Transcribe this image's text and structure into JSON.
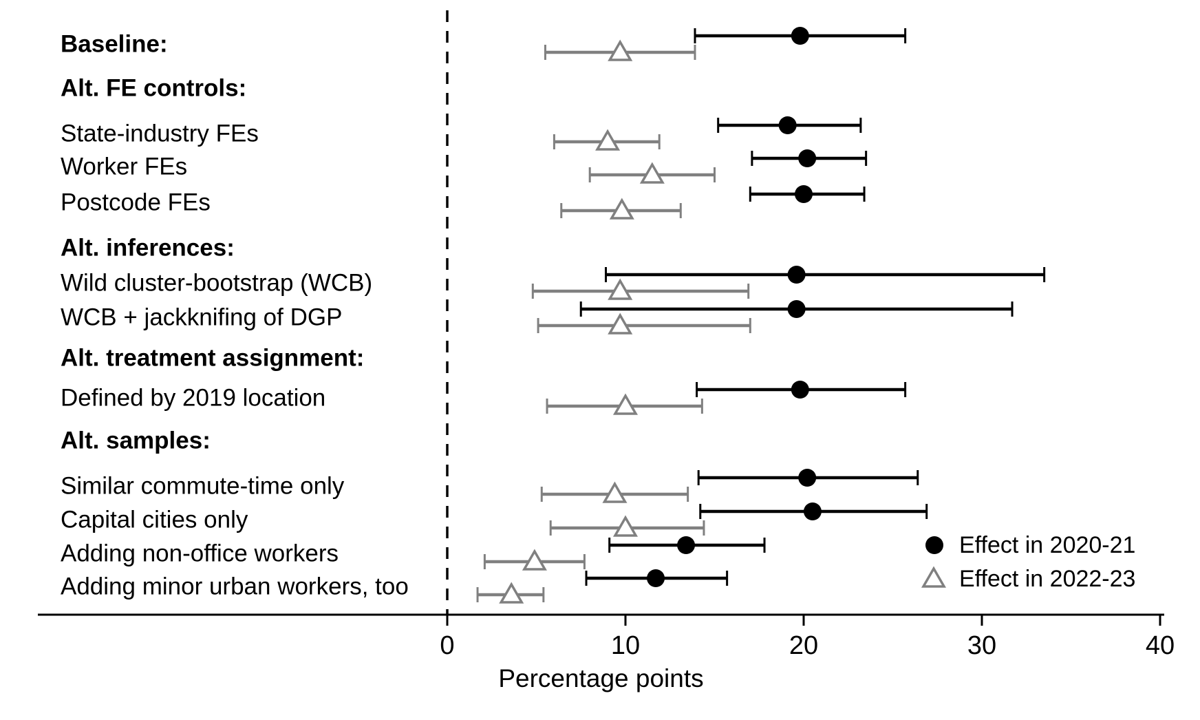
{
  "chart_data": {
    "type": "scatter",
    "subtype": "coefficient-plot-with-confidence-intervals",
    "title": "",
    "xlabel": "Percentage points",
    "xticks": [
      0,
      10,
      20,
      30,
      40
    ],
    "xlim": [
      -23,
      40.3
    ],
    "zero_reference_line": true,
    "grid": false,
    "legend_position": "bottom-right",
    "series_meta": [
      {
        "name": "Effect in 2020-21",
        "marker": "filled-circle",
        "color": "#000000"
      },
      {
        "name": "Effect in 2022-23",
        "marker": "open-triangle",
        "color": "#808080"
      }
    ],
    "rows": [
      {
        "type": "data",
        "label": "Baseline:",
        "bold": true,
        "e2021": {
          "est": 19.8,
          "lo": 13.9,
          "hi": 25.7
        },
        "e2023": {
          "est": 9.7,
          "lo": 5.5,
          "hi": 13.9
        }
      },
      {
        "type": "header",
        "label": "Alt. FE controls:"
      },
      {
        "type": "data",
        "label": "State-industry FEs",
        "e2021": {
          "est": 19.1,
          "lo": 15.2,
          "hi": 23.2
        },
        "e2023": {
          "est": 9.0,
          "lo": 6.0,
          "hi": 11.9
        }
      },
      {
        "type": "data",
        "label": "Worker FEs",
        "e2021": {
          "est": 20.2,
          "lo": 17.1,
          "hi": 23.5
        },
        "e2023": {
          "est": 11.5,
          "lo": 8.0,
          "hi": 15.0
        }
      },
      {
        "type": "data",
        "label": "Postcode FEs",
        "e2021": {
          "est": 20.0,
          "lo": 17.0,
          "hi": 23.4
        },
        "e2023": {
          "est": 9.8,
          "lo": 6.4,
          "hi": 13.1
        }
      },
      {
        "type": "header",
        "label": "Alt. inferences:"
      },
      {
        "type": "data",
        "label": "Wild cluster-bootstrap (WCB)",
        "e2021": {
          "est": 19.6,
          "lo": 8.9,
          "hi": 33.5
        },
        "e2023": {
          "est": 9.7,
          "lo": 4.8,
          "hi": 16.9
        }
      },
      {
        "type": "data",
        "label": "WCB + jackknifing of DGP",
        "e2021": {
          "est": 19.6,
          "lo": 7.5,
          "hi": 31.7
        },
        "e2023": {
          "est": 9.7,
          "lo": 5.1,
          "hi": 17.0
        }
      },
      {
        "type": "header",
        "label": "Alt. treatment assignment:"
      },
      {
        "type": "data",
        "label": "Defined by 2019 location",
        "e2021": {
          "est": 19.8,
          "lo": 14.0,
          "hi": 25.7
        },
        "e2023": {
          "est": 10.0,
          "lo": 5.6,
          "hi": 14.3
        }
      },
      {
        "type": "header",
        "label": "Alt. samples:"
      },
      {
        "type": "data",
        "label": "Similar commute-time only",
        "e2021": {
          "est": 20.2,
          "lo": 14.1,
          "hi": 26.4
        },
        "e2023": {
          "est": 9.4,
          "lo": 5.3,
          "hi": 13.5
        }
      },
      {
        "type": "data",
        "label": "Capital cities only",
        "e2021": {
          "est": 20.5,
          "lo": 14.2,
          "hi": 26.9
        },
        "e2023": {
          "est": 10.0,
          "lo": 5.8,
          "hi": 14.4
        }
      },
      {
        "type": "data",
        "label": "Adding non-office workers",
        "e2021": {
          "est": 13.4,
          "lo": 9.1,
          "hi": 17.8
        },
        "e2023": {
          "est": 4.9,
          "lo": 2.1,
          "hi": 7.7
        }
      },
      {
        "type": "data",
        "label": "Adding minor urban workers, too",
        "e2021": {
          "est": 11.7,
          "lo": 7.8,
          "hi": 15.7
        },
        "e2023": {
          "est": 3.6,
          "lo": 1.7,
          "hi": 5.4
        }
      }
    ]
  },
  "legend": {
    "items": [
      {
        "label": "Effect in 2020-21",
        "marker": "filled-circle"
      },
      {
        "label": "Effect in 2022-23",
        "marker": "open-triangle"
      }
    ]
  },
  "x_axis": {
    "title": "Percentage points"
  },
  "colors": {
    "effect_2020_21": "#000000",
    "effect_2022_23": "#808080",
    "axis": "#000000",
    "background": "#ffffff"
  }
}
